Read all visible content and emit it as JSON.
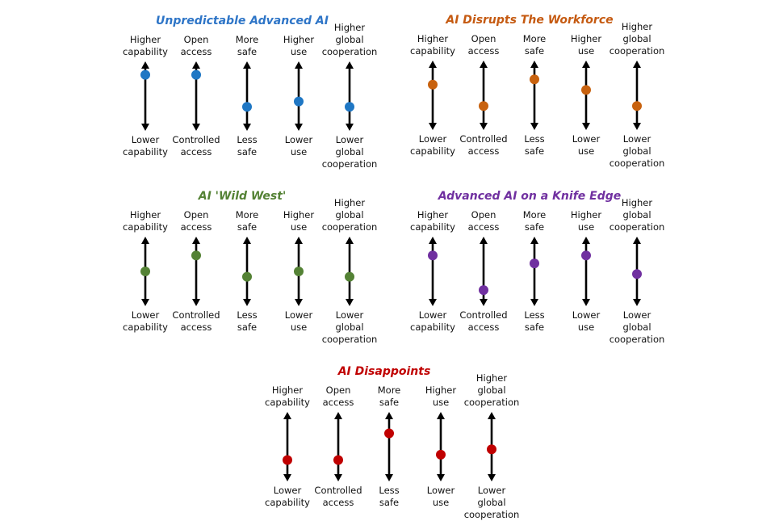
{
  "scenarios": [
    {
      "title": "Unpredictable Advanced AI",
      "color": "#2e75c7",
      "dot_color": "#1f77c4",
      "levels": [
        0.9,
        0.9,
        0.3,
        0.4,
        0.3
      ]
    },
    {
      "title": "AI Disrupts The Workforce",
      "color": "#c55a11",
      "dot_color": "#c8620f",
      "levels": [
        0.7,
        0.3,
        0.8,
        0.6,
        0.3
      ]
    },
    {
      "title": "AI 'Wild West'",
      "color": "#548235",
      "dot_color": "#548235",
      "levels": [
        0.5,
        0.8,
        0.4,
        0.5,
        0.4
      ]
    },
    {
      "title": "Advanced AI on a Knife Edge",
      "color": "#7030a0",
      "dot_color": "#7030a0",
      "levels": [
        0.8,
        0.15,
        0.65,
        0.8,
        0.45
      ]
    },
    {
      "title": "AI Disappoints",
      "color": "#c00000",
      "dot_color": "#c00000",
      "levels": [
        0.25,
        0.25,
        0.75,
        0.35,
        0.45
      ]
    }
  ],
  "axes": [
    {
      "top": [
        "Higher",
        "capability"
      ],
      "bottom": [
        "Lower",
        "capability"
      ]
    },
    {
      "top": [
        "Open",
        "access"
      ],
      "bottom": [
        "Controlled",
        "access"
      ]
    },
    {
      "top": [
        "More",
        "safe"
      ],
      "bottom": [
        "Less",
        "safe"
      ]
    },
    {
      "top": [
        "Higher",
        "use"
      ],
      "bottom": [
        "Lower",
        "use"
      ]
    },
    {
      "top": [
        "Higher",
        "global",
        "cooperation"
      ],
      "bottom": [
        "Lower",
        "global",
        "cooperation"
      ]
    }
  ]
}
